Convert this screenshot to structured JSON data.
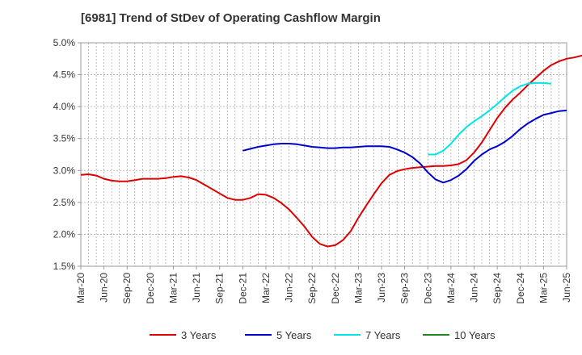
{
  "chart_data": {
    "type": "line",
    "title": "[6981]  Trend of StDev of Operating Cashflow Margin",
    "xlabel": "",
    "ylabel": "",
    "ylim": [
      0.015,
      0.05
    ],
    "y_ticks": [
      "1.5%",
      "2.0%",
      "2.5%",
      "3.0%",
      "3.5%",
      "4.0%",
      "4.5%",
      "5.0%"
    ],
    "y_tick_values": [
      0.015,
      0.02,
      0.025,
      0.03,
      0.035,
      0.04,
      0.045,
      0.05
    ],
    "x_ticks": [
      "Mar-20",
      "Jun-20",
      "Sep-20",
      "Dec-20",
      "Mar-21",
      "Jun-21",
      "Sep-21",
      "Dec-21",
      "Mar-22",
      "Jun-22",
      "Sep-22",
      "Dec-22",
      "Mar-23",
      "Jun-23",
      "Sep-23",
      "Dec-23",
      "Mar-24",
      "Jun-24",
      "Sep-24",
      "Dec-24",
      "Mar-25",
      "Jun-25"
    ],
    "x_axis_months": "monthly from Mar-20 to Jun-25",
    "grid": true,
    "legend_position": "bottom",
    "series": [
      {
        "name": "3 Years",
        "color": "#dd0000",
        "start": "Mar-20",
        "values": [
          0.0293,
          0.0294,
          0.0292,
          0.0287,
          0.0284,
          0.0283,
          0.0283,
          0.0285,
          0.0287,
          0.0287,
          0.0287,
          0.0288,
          0.029,
          0.0291,
          0.0289,
          0.0285,
          0.0278,
          0.0271,
          0.0264,
          0.0257,
          0.0254,
          0.0254,
          0.0257,
          0.0263,
          0.0262,
          0.0257,
          0.0249,
          0.0239,
          0.0226,
          0.0212,
          0.0196,
          0.0185,
          0.0181,
          0.0183,
          0.0191,
          0.0205,
          0.0226,
          0.0245,
          0.0263,
          0.028,
          0.0293,
          0.0299,
          0.0302,
          0.0304,
          0.0305,
          0.0306,
          0.0307,
          0.0307,
          0.0308,
          0.031,
          0.0316,
          0.0328,
          0.0344,
          0.0363,
          0.0382,
          0.0398,
          0.0411,
          0.0422,
          0.0434,
          0.0445,
          0.0456,
          0.0465,
          0.0471,
          0.0475,
          0.0477,
          0.048,
          0.0482,
          0.0484
        ]
      },
      {
        "name": "5 Years",
        "color": "#0000cc",
        "start": "Dec-21",
        "values": [
          0.0331,
          0.0334,
          0.0337,
          0.0339,
          0.0341,
          0.0342,
          0.0342,
          0.0341,
          0.0339,
          0.0337,
          0.0336,
          0.0335,
          0.0335,
          0.0336,
          0.0336,
          0.0337,
          0.0338,
          0.0338,
          0.0338,
          0.0337,
          0.0333,
          0.0328,
          0.0321,
          0.0311,
          0.0297,
          0.0286,
          0.0281,
          0.0285,
          0.0292,
          0.0302,
          0.0315,
          0.0325,
          0.0333,
          0.0338,
          0.0345,
          0.0354,
          0.0365,
          0.0374,
          0.0381,
          0.0387,
          0.039,
          0.0393,
          0.0394
        ]
      },
      {
        "name": "7 Years",
        "color": "#00e5e5",
        "start": "Dec-23",
        "values": [
          0.0325,
          0.0325,
          0.0331,
          0.0342,
          0.0356,
          0.0368,
          0.0377,
          0.0385,
          0.0394,
          0.0404,
          0.0415,
          0.0425,
          0.0432,
          0.0436,
          0.0437,
          0.0437,
          0.0436
        ]
      },
      {
        "name": "10 Years",
        "color": "#228822",
        "start": "",
        "values": []
      }
    ]
  }
}
